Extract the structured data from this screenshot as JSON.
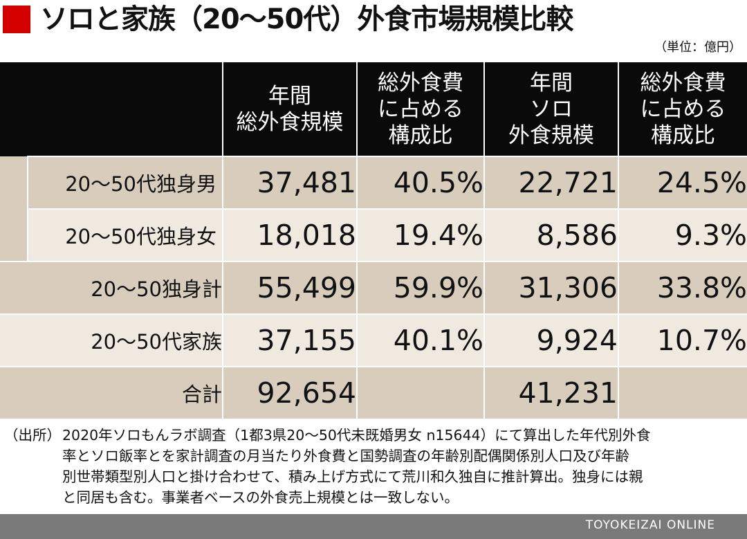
{
  "title": "ソロと家族（20〜50代）外食市場規模比較",
  "unit": "（単位：億円）",
  "header": {
    "col1": [
      "年間",
      "総外食規模"
    ],
    "col2": [
      "総外食費",
      "に占める",
      "構成比"
    ],
    "col3": [
      "年間",
      "ソロ",
      "外食規模"
    ],
    "col4": [
      "総外食費",
      "に占める",
      "構成比"
    ]
  },
  "rows": [
    {
      "label": "20〜50代独身男",
      "total": "37,481",
      "total_pct": "40.5%",
      "solo": "22,721",
      "solo_pct": "24.5%"
    },
    {
      "label": "20〜50代独身女",
      "total": "18,018",
      "total_pct": "19.4%",
      "solo": "8,586",
      "solo_pct": "9.3%"
    },
    {
      "label": "20〜50独身計",
      "total": "55,499",
      "total_pct": "59.9%",
      "solo": "31,306",
      "solo_pct": "33.8%"
    },
    {
      "label": "20〜50代家族",
      "total": "37,155",
      "total_pct": "40.1%",
      "solo": "9,924",
      "solo_pct": "10.7%"
    },
    {
      "label": "合計",
      "total": "92,654",
      "total_pct": "",
      "solo": "41,231",
      "solo_pct": ""
    }
  ],
  "note": {
    "source_label": "（出所）",
    "lines": [
      "2020年ソロもんラボ調査（1都3県20〜50代未既婚男女 n15644）にて算出した年代別外食",
      "率とソロ飯率とを家計調査の月当たり外食費と国勢調査の年齢別配偶関係別人口及び年齢",
      "別世帯類型別人口と掛け合わせて、積み上げ方式にて荒川和久独自に推計算出。独身には親",
      "と同居も含む。事業者ベースの外食売上規模とは一致しない。"
    ]
  },
  "footer": {
    "credit": "TOYOKEIZAI ONLINE"
  },
  "colors": {
    "accent": "#d40000",
    "header_bg": "#0a0a0a",
    "row_dark": "#d8ccbc",
    "row_light": "#efe9df",
    "footer_bg": "#7a7a7a"
  }
}
